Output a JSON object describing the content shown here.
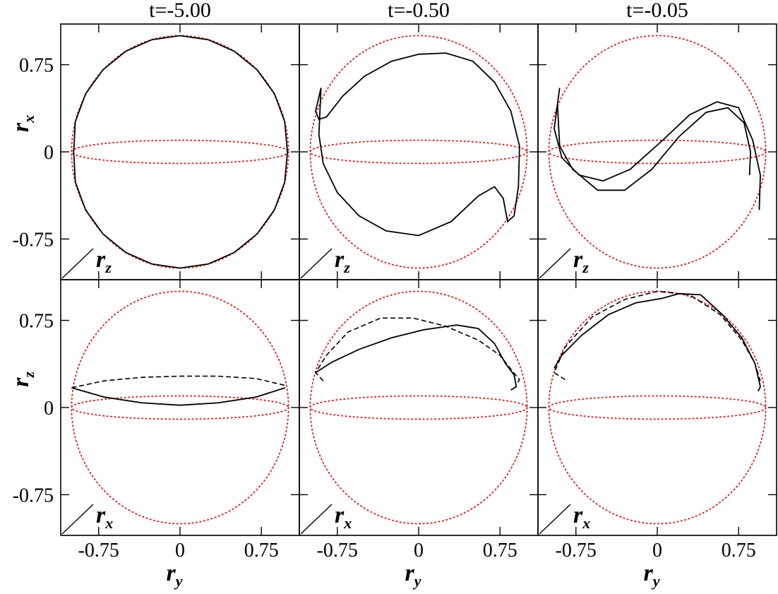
{
  "chart_data": {
    "type": "line",
    "column_titles": [
      "t=-5.00",
      "t=-0.50",
      "t=-0.05"
    ],
    "rows": [
      {
        "ylabel": {
          "main": "r",
          "sub": "x"
        },
        "depth_label": {
          "main": "r",
          "sub": "z"
        }
      },
      {
        "ylabel": {
          "main": "r",
          "sub": "z"
        },
        "depth_label": {
          "main": "r",
          "sub": "x"
        }
      }
    ],
    "xlabel": {
      "main": "r",
      "sub": "y"
    },
    "x_ticks": [
      -0.75,
      0,
      0.75
    ],
    "x_tick_labels": [
      "-0.75",
      "0",
      "0.75"
    ],
    "y_ticks": [
      -0.75,
      0,
      0.75
    ],
    "y_tick_labels": [
      "-0.75",
      "0",
      "0.75"
    ],
    "xlim": [
      -1.1,
      1.1
    ],
    "ylim": [
      -1.1,
      1.1
    ],
    "unit_circle_radius": 1.0,
    "equator_ellipse": {
      "rx": 1.0,
      "ry": 0.1
    },
    "panels": [
      {
        "row": 0,
        "col": 0,
        "series": [
          {
            "style": "solid",
            "points": [
              [
                0.0,
                1.0
              ],
              [
                0.26,
                0.965
              ],
              [
                0.5,
                0.866
              ],
              [
                0.71,
                0.707
              ],
              [
                0.87,
                0.5
              ],
              [
                0.965,
                0.26
              ],
              [
                0.99,
                0.0
              ],
              [
                0.965,
                -0.26
              ],
              [
                0.87,
                -0.5
              ],
              [
                0.71,
                -0.707
              ],
              [
                0.5,
                -0.866
              ],
              [
                0.26,
                -0.965
              ],
              [
                0.0,
                -1.0
              ],
              [
                -0.26,
                -0.965
              ],
              [
                -0.5,
                -0.866
              ],
              [
                -0.71,
                -0.707
              ],
              [
                -0.87,
                -0.5
              ],
              [
                -0.965,
                -0.26
              ],
              [
                -0.98,
                0.0
              ],
              [
                -0.965,
                0.26
              ],
              [
                -0.87,
                0.5
              ],
              [
                -0.71,
                0.707
              ],
              [
                -0.5,
                0.866
              ],
              [
                -0.26,
                0.965
              ],
              [
                0.0,
                1.0
              ]
            ]
          }
        ]
      },
      {
        "row": 0,
        "col": 1,
        "series": [
          {
            "style": "solid",
            "points": [
              [
                -0.9,
                0.55
              ],
              [
                -0.95,
                0.35
              ],
              [
                -0.92,
                0.28
              ],
              [
                -0.85,
                0.3
              ],
              [
                -0.7,
                0.48
              ],
              [
                -0.5,
                0.65
              ],
              [
                -0.25,
                0.78
              ],
              [
                0.0,
                0.84
              ],
              [
                0.25,
                0.85
              ],
              [
                0.5,
                0.78
              ],
              [
                0.7,
                0.6
              ],
              [
                0.85,
                0.35
              ],
              [
                0.93,
                0.05
              ],
              [
                0.92,
                -0.3
              ],
              [
                0.88,
                -0.55
              ],
              [
                0.82,
                -0.6
              ],
              [
                0.78,
                -0.4
              ],
              [
                0.7,
                -0.3
              ],
              [
                0.55,
                -0.38
              ],
              [
                0.3,
                -0.6
              ],
              [
                0.0,
                -0.72
              ],
              [
                -0.3,
                -0.68
              ],
              [
                -0.55,
                -0.55
              ],
              [
                -0.75,
                -0.35
              ],
              [
                -0.88,
                -0.1
              ],
              [
                -0.92,
                0.15
              ],
              [
                -0.9,
                0.55
              ]
            ]
          }
        ]
      },
      {
        "row": 0,
        "col": 2,
        "series": [
          {
            "style": "solid",
            "points": [
              [
                -0.9,
                0.55
              ],
              [
                -0.95,
                0.2
              ],
              [
                -0.88,
                -0.05
              ],
              [
                -0.72,
                -0.2
              ],
              [
                -0.5,
                -0.25
              ],
              [
                -0.25,
                -0.15
              ],
              [
                0.05,
                0.1
              ],
              [
                0.3,
                0.32
              ],
              [
                0.55,
                0.43
              ],
              [
                0.75,
                0.38
              ],
              [
                0.88,
                0.1
              ],
              [
                0.95,
                -0.2
              ],
              [
                0.94,
                -0.5
              ]
            ]
          },
          {
            "style": "solid",
            "points": [
              [
                -0.92,
                0.4
              ],
              [
                -0.9,
                0.05
              ],
              [
                -0.78,
                -0.15
              ],
              [
                -0.55,
                -0.33
              ],
              [
                -0.3,
                -0.33
              ],
              [
                -0.05,
                -0.15
              ],
              [
                0.2,
                0.13
              ],
              [
                0.45,
                0.34
              ],
              [
                0.65,
                0.38
              ],
              [
                0.8,
                0.25
              ],
              [
                0.86,
                0.0
              ],
              [
                0.85,
                -0.2
              ]
            ]
          }
        ]
      },
      {
        "row": 1,
        "col": 0,
        "series": [
          {
            "style": "solid",
            "points": [
              [
                -1.0,
                0.17
              ],
              [
                -0.7,
                0.09
              ],
              [
                -0.35,
                0.04
              ],
              [
                0.0,
                0.02
              ],
              [
                0.35,
                0.04
              ],
              [
                0.7,
                0.09
              ],
              [
                0.97,
                0.17
              ]
            ]
          },
          {
            "style": "dashed",
            "points": [
              [
                -1.0,
                0.17
              ],
              [
                -0.7,
                0.23
              ],
              [
                -0.35,
                0.26
              ],
              [
                0.0,
                0.27
              ],
              [
                0.35,
                0.27
              ],
              [
                0.7,
                0.25
              ],
              [
                0.97,
                0.19
              ]
            ]
          }
        ]
      },
      {
        "row": 1,
        "col": 1,
        "series": [
          {
            "style": "solid",
            "points": [
              [
                -0.95,
                0.3
              ],
              [
                -0.8,
                0.39
              ],
              [
                -0.55,
                0.5
              ],
              [
                -0.25,
                0.6
              ],
              [
                0.05,
                0.67
              ],
              [
                0.35,
                0.71
              ],
              [
                0.55,
                0.68
              ],
              [
                0.7,
                0.55
              ],
              [
                0.8,
                0.38
              ],
              [
                0.88,
                0.28
              ],
              [
                0.9,
                0.18
              ],
              [
                0.85,
                0.15
              ]
            ]
          },
          {
            "style": "dashed",
            "points": [
              [
                -0.88,
                0.23
              ],
              [
                -0.95,
                0.3
              ],
              [
                -0.85,
                0.45
              ],
              [
                -0.65,
                0.65
              ],
              [
                -0.35,
                0.77
              ],
              [
                -0.05,
                0.77
              ],
              [
                0.25,
                0.7
              ],
              [
                0.55,
                0.58
              ],
              [
                0.75,
                0.45
              ],
              [
                0.85,
                0.33
              ],
              [
                0.93,
                0.24
              ],
              [
                0.9,
                0.2
              ]
            ]
          }
        ]
      },
      {
        "row": 1,
        "col": 2,
        "series": [
          {
            "style": "solid",
            "points": [
              [
                -0.95,
                0.34
              ],
              [
                -0.88,
                0.45
              ],
              [
                -0.7,
                0.62
              ],
              [
                -0.45,
                0.8
              ],
              [
                -0.2,
                0.9
              ],
              [
                0.05,
                0.94
              ],
              [
                0.2,
                0.98
              ],
              [
                0.4,
                0.97
              ],
              [
                0.6,
                0.8
              ],
              [
                0.78,
                0.6
              ],
              [
                0.9,
                0.38
              ],
              [
                0.95,
                0.18
              ],
              [
                0.93,
                0.14
              ]
            ]
          },
          {
            "style": "dashed",
            "points": [
              [
                -0.85,
                0.24
              ],
              [
                -0.95,
                0.3
              ],
              [
                -0.85,
                0.52
              ],
              [
                -0.6,
                0.78
              ],
              [
                -0.3,
                0.93
              ],
              [
                0.0,
                1.0
              ],
              [
                0.3,
                0.97
              ],
              [
                0.58,
                0.8
              ],
              [
                0.78,
                0.58
              ],
              [
                0.9,
                0.38
              ],
              [
                0.95,
                0.23
              ]
            ]
          }
        ]
      }
    ]
  }
}
